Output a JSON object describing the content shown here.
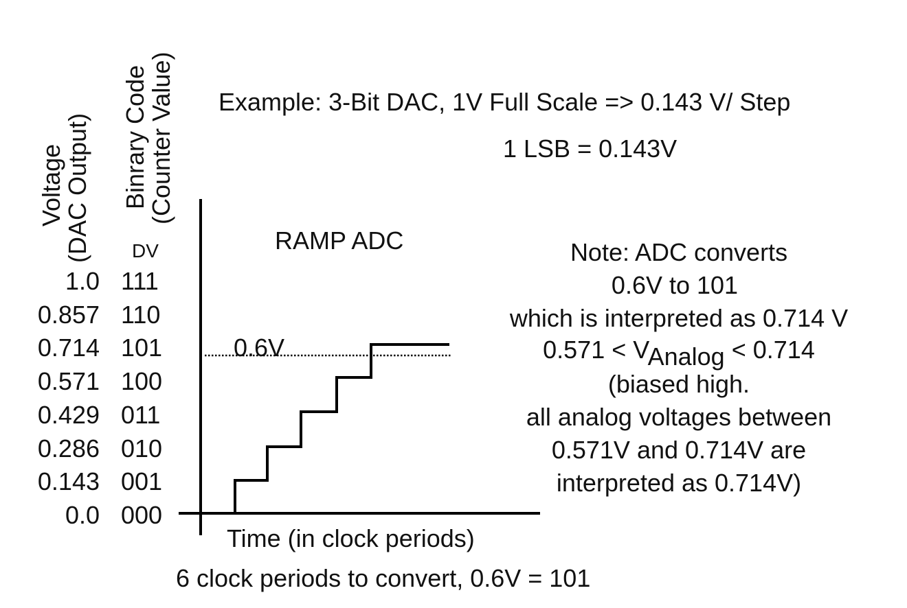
{
  "axes": {
    "voltage_label_line1": "Voltage",
    "voltage_label_line2": "(DAC Output)",
    "code_label_line1": "Binrary Code",
    "code_label_line2": "(Counter Value)",
    "dv_label": "DV",
    "x_label": "Time (in clock periods)"
  },
  "header": {
    "example": "Example: 3-Bit DAC, 1V Full Scale => 0.143 V/ Step",
    "lsb": "1 LSB = 0.143V"
  },
  "chart_title": "RAMP ADC",
  "threshold_label": "0.6V",
  "levels": [
    {
      "voltage": "1.0",
      "code": "111"
    },
    {
      "voltage": "0.857",
      "code": "110"
    },
    {
      "voltage": "0.714",
      "code": "101"
    },
    {
      "voltage": "0.571",
      "code": "100"
    },
    {
      "voltage": "0.429",
      "code": "011"
    },
    {
      "voltage": "0.286",
      "code": "010"
    },
    {
      "voltage": "0.143",
      "code": "001"
    },
    {
      "voltage": "0.0",
      "code": "000"
    }
  ],
  "note": {
    "line1": "Note: ADC converts",
    "line2": "0.6V to 101",
    "line3": "which is interpreted as 0.714 V",
    "line4_pre": "0.571 < V",
    "line4_sub": "Analog",
    "line4_post": " < 0.714",
    "line5": "(biased high.",
    "line6": "all analog voltages between",
    "line7": "0.571V and 0.714V are",
    "line8": "interpreted as 0.714V)"
  },
  "footer": "6 clock periods to convert, 0.6V = 101",
  "chart_data": {
    "type": "line",
    "step_levels_code": [
      0,
      1,
      2,
      3,
      4,
      5
    ],
    "threshold_voltage": 0.6,
    "final_code": 5
  }
}
